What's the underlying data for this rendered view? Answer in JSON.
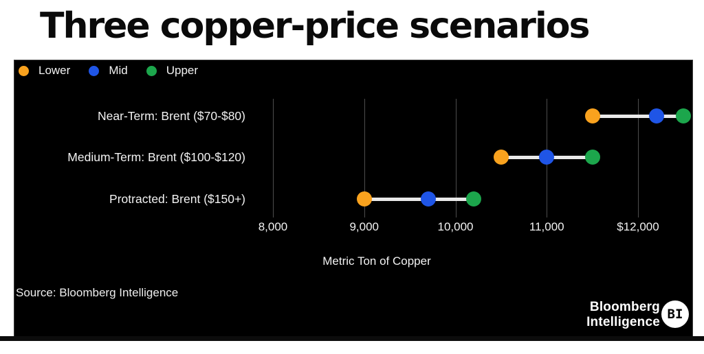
{
  "title": "Three copper-price scenarios",
  "legend": [
    {
      "label": "Lower",
      "color": "#f9a21e"
    },
    {
      "label": "Mid",
      "color": "#1f55e6"
    },
    {
      "label": "Upper",
      "color": "#1ca64c"
    }
  ],
  "source": "Source: Bloomberg Intelligence",
  "logo": {
    "line1": "Bloomberg",
    "line2": "Intelligence",
    "badge": "BI"
  },
  "chart_data": {
    "type": "scatter",
    "subtype": "dumbbell-range",
    "title": "Three copper-price scenarios",
    "categories": [
      "Near-Term: Brent ($70-$80)",
      "Medium-Term: Brent ($100-$120)",
      "Protracted: Brent ($150+)"
    ],
    "series": [
      {
        "name": "Lower",
        "color": "#f9a21e",
        "values": [
          11500,
          10500,
          9000
        ]
      },
      {
        "name": "Mid",
        "color": "#1f55e6",
        "values": [
          12200,
          11000,
          9700
        ]
      },
      {
        "name": "Upper",
        "color": "#1ca64c",
        "values": [
          12500,
          11500,
          10200
        ]
      }
    ],
    "xlabel": "Metric Ton of Copper",
    "ylabel": "",
    "x_ticks": [
      {
        "value": 8000,
        "label": "8,000"
      },
      {
        "value": 9000,
        "label": "9,000"
      },
      {
        "value": 10000,
        "label": "10,000"
      },
      {
        "value": 11000,
        "label": "11,000"
      },
      {
        "value": 12000,
        "label": "$12,000"
      }
    ],
    "xlim": [
      7200,
      12620
    ],
    "grid": "vertical-only",
    "legend_position": "top-left",
    "background": "#000000",
    "text_color": "#f2f2f2",
    "connector_color": "#e9e9e9"
  }
}
